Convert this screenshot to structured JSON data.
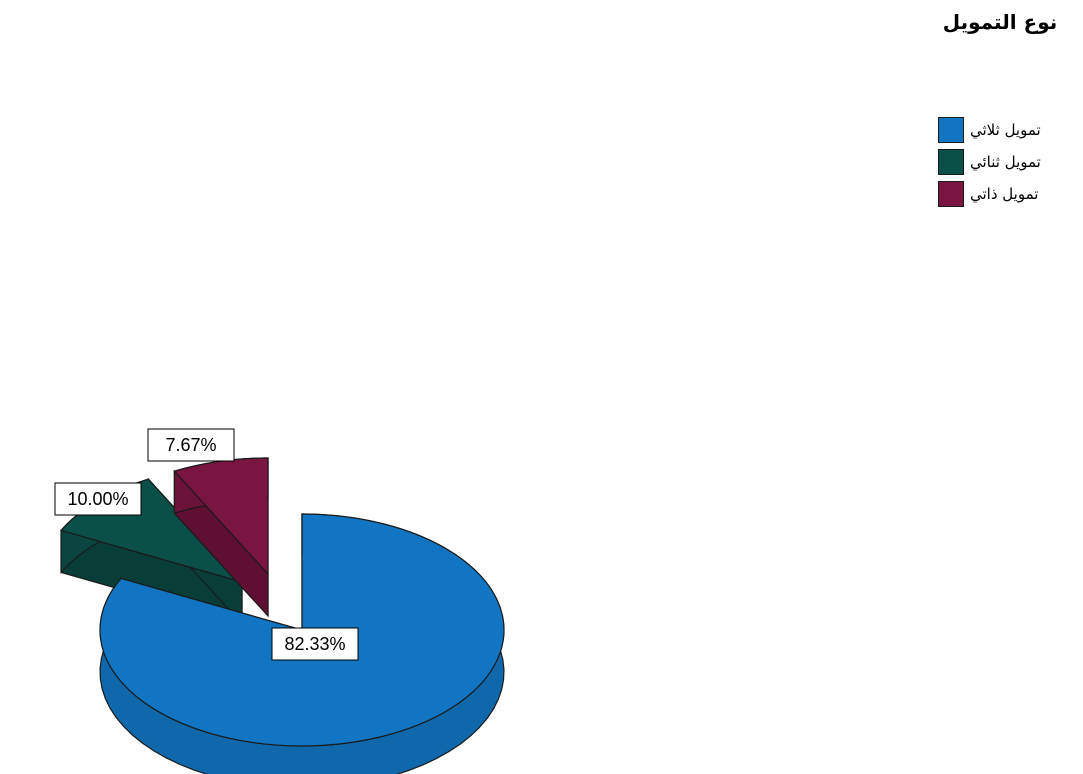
{
  "chart_data": {
    "type": "pie",
    "title": "",
    "legend_title": "نوع التمويل",
    "legend_position": "top-right",
    "three_d": true,
    "exploded": true,
    "slices": [
      {
        "name": "تمويل ثلاثي",
        "value": 82.33,
        "label": "82.33%",
        "color": "#1175c3"
      },
      {
        "name": "تمويل ثنائي",
        "value": 10.0,
        "label": "10.00%",
        "color": "#0b5048"
      },
      {
        "name": "تمويل ذاتي",
        "value": 7.67,
        "label": "7.67%",
        "color": "#7a1440"
      }
    ]
  }
}
